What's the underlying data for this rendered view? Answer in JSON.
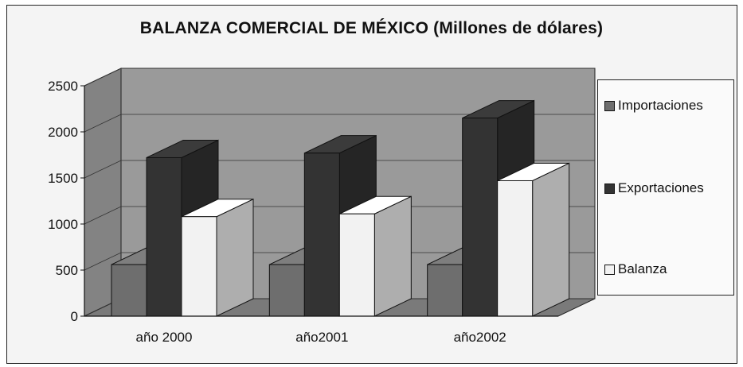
{
  "chart_data": {
    "type": "bar",
    "title": "BALANZA COMERCIAL DE MÉXICO  (Millones de dólares)",
    "categories": [
      "año 2000",
      "año2001",
      "año2002"
    ],
    "series": [
      {
        "name": "Importaciones",
        "values": [
          560,
          560,
          560
        ]
      },
      {
        "name": "Exportaciones",
        "values": [
          1720,
          1770,
          2150
        ]
      },
      {
        "name": "Balanza",
        "values": [
          1080,
          1110,
          1470
        ]
      }
    ],
    "ylim": [
      0,
      2500
    ],
    "yticks": [
      "0",
      "500",
      "1000",
      "1500",
      "2000",
      "2500"
    ],
    "grid": true,
    "legend_position": "right",
    "colors": {
      "Importaciones": "#6e6e6e",
      "Exportaciones": "#333333",
      "Balanza": "#f2f2f2",
      "wall": "#9a9a9a",
      "floor": "#7a7a7a"
    }
  }
}
